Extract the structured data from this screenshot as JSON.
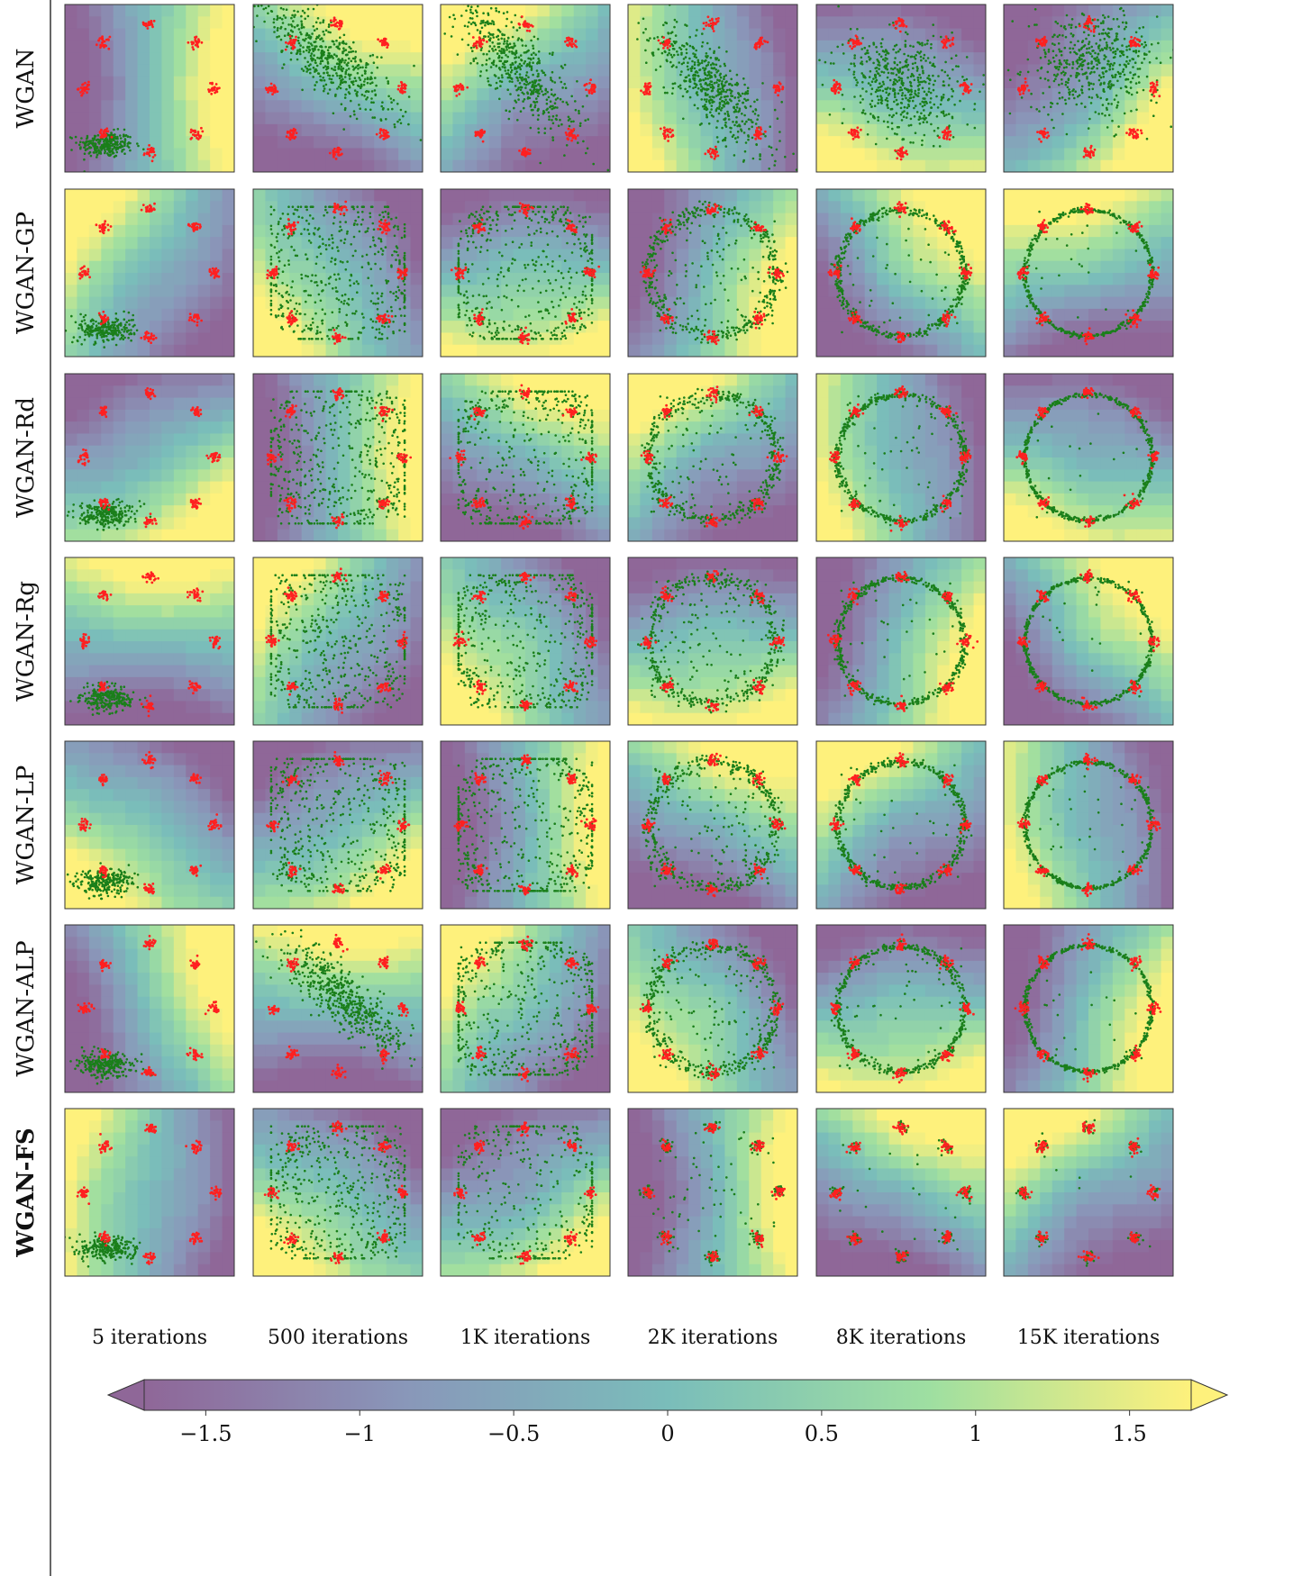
{
  "chart_data": {
    "type": "scatter",
    "layout": "grid of contour-filled scatter panels",
    "rows": [
      "WGAN",
      "WGAN-GP",
      "WGAN-Rd",
      "WGAN-Rg",
      "WGAN-LP",
      "WGAN-ALP",
      "WGAN-FS"
    ],
    "bold_rows": [
      "WGAN-FS"
    ],
    "columns": [
      "5 iterations",
      "500 iterations",
      "1K iterations",
      "2K iterations",
      "8K iterations",
      "15K iterations"
    ],
    "real_data": {
      "color": "#ff2020",
      "distribution": "8 Gaussian modes on a circle",
      "modes": [
        [
          0,
          2
        ],
        [
          1.414,
          1.414
        ],
        [
          2,
          0
        ],
        [
          1.414,
          -1.414
        ],
        [
          0,
          -2
        ],
        [
          -1.414,
          -1.414
        ],
        [
          -2,
          0
        ],
        [
          -1.414,
          1.414
        ]
      ]
    },
    "generated_data": {
      "color": "#1a7f1a"
    },
    "colorbar": {
      "ticks": [
        "−1.5",
        "−1",
        "−0.5",
        "0",
        "0.5",
        "1",
        "1.5"
      ],
      "tick_values": [
        -1.5,
        -1,
        -0.5,
        0,
        0.5,
        1,
        1.5
      ],
      "range": [
        -1.7,
        1.7
      ],
      "extend": "both",
      "colormap": "viridis"
    }
  }
}
